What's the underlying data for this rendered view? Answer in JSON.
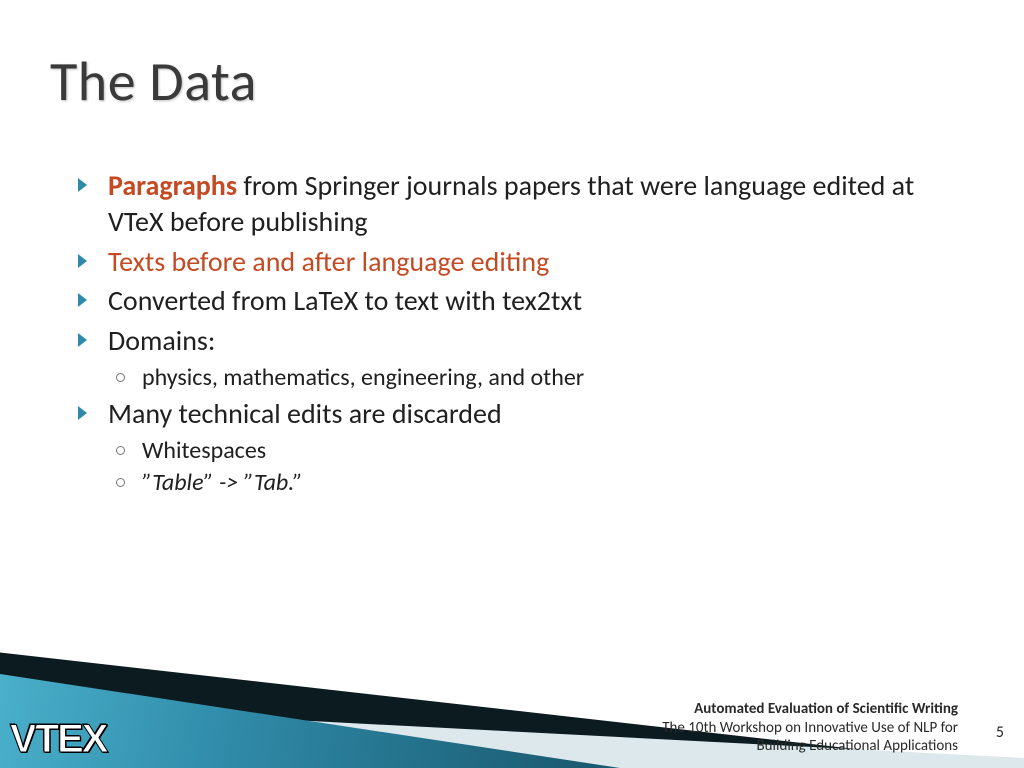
{
  "title": "The Data",
  "colors": {
    "title_color": "#3a3a3a",
    "text_color": "#202020",
    "accent_color": "#c44a24",
    "bullet_color": "#2f8aa8",
    "background": "#ffffff",
    "footer_dark": "#0b1b1f",
    "footer_teal_light": "#4eb6d0",
    "footer_teal_dark": "#1a5a70",
    "footer_light_band": "#dce8ec",
    "logo_color": "#ffffff"
  },
  "typography": {
    "title_fontsize": 56,
    "body_fontsize": 28,
    "sub_fontsize": 24,
    "footer_fontsize": 15,
    "font_family": "Calibri"
  },
  "bullets": {
    "b1_highlight": "Paragraphs",
    "b1_rest": " from Springer journals papers that were language edited at VTeX before publishing",
    "b2": "Texts before and after language editing",
    "b3": "Converted from LaTeX to text with tex2txt",
    "b4": "Domains:",
    "b4_sub1": "physics, mathematics, engineering, and other",
    "b5": "Many technical edits are discarded",
    "b5_sub1": "Whitespaces",
    "b5_sub2": "”Table” -> ”Tab.”"
  },
  "footer": {
    "logo": "VTEX",
    "line1": "Automated Evaluation of Scientific Writing",
    "line2": "The 10th Workshop on Innovative Use of NLP for",
    "line3": "Building Educational Applications",
    "page_number": "5"
  }
}
